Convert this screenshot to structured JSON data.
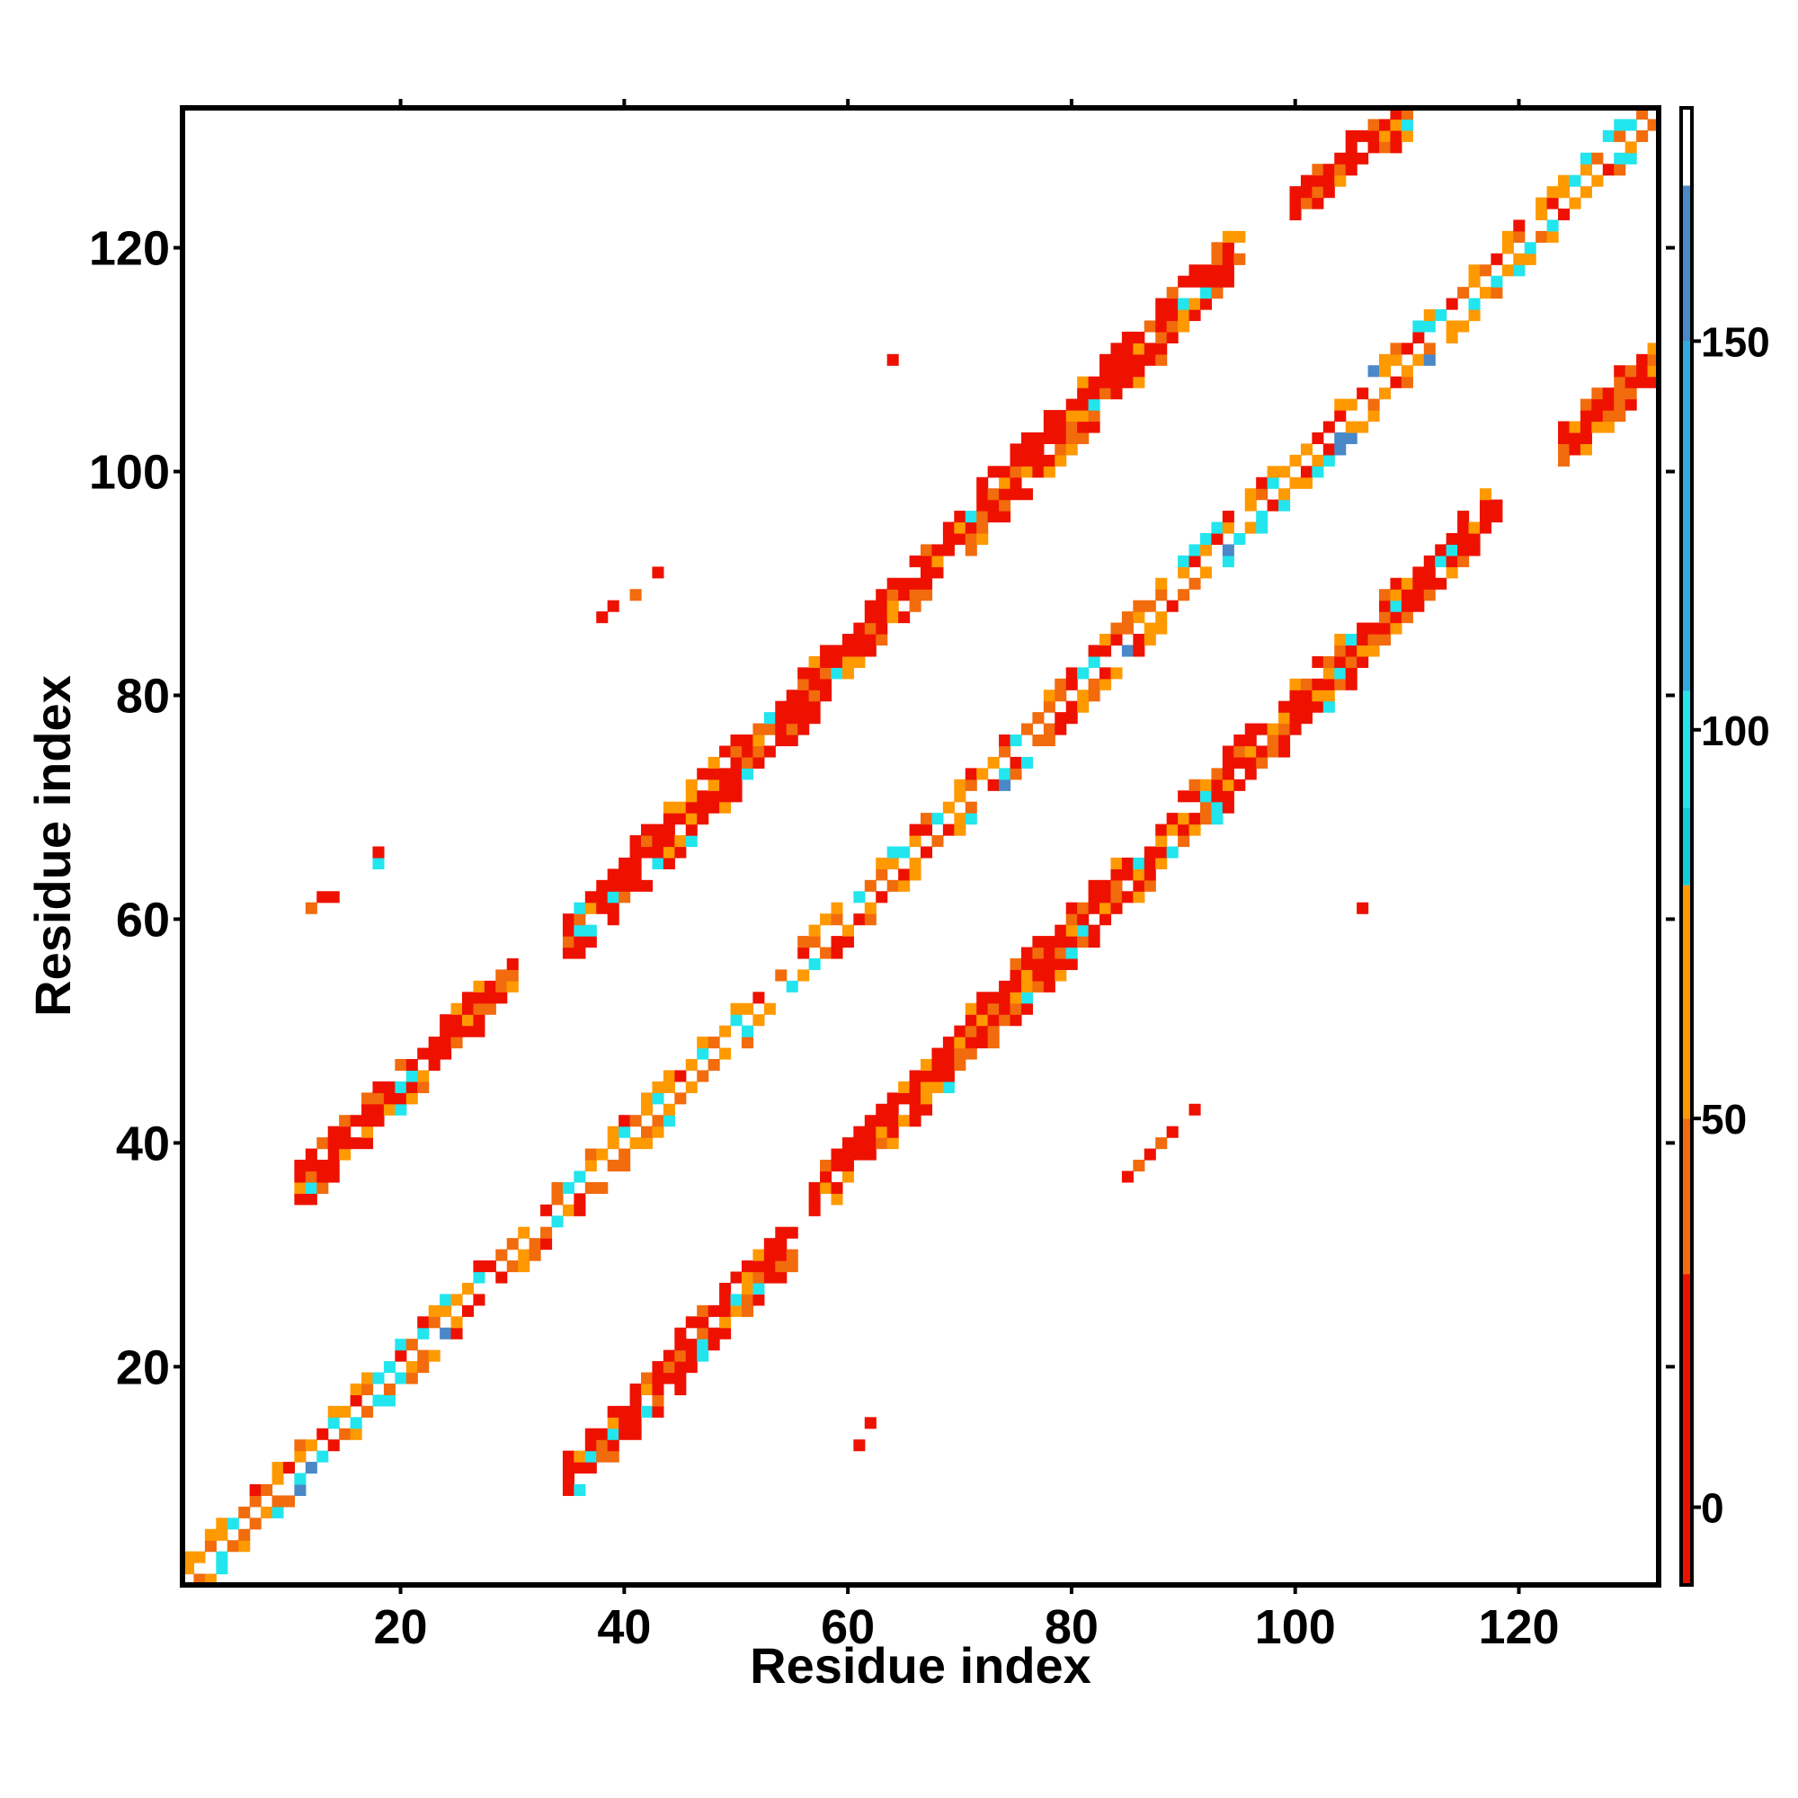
{
  "chart_data": {
    "type": "heatmap",
    "title": "",
    "xlabel": "Residue index",
    "ylabel": "Residue index",
    "xlim": [
      1,
      132
    ],
    "ylim": [
      1,
      132
    ],
    "x_ticks": [
      20,
      40,
      60,
      80,
      100,
      120
    ],
    "y_ticks": [
      20,
      40,
      60,
      80,
      100,
      120
    ],
    "x_tick_labels": [
      "20",
      "40",
      "60",
      "80",
      "100",
      "120"
    ],
    "y_tick_labels": [
      "20",
      "40",
      "60",
      "80",
      "100",
      "120"
    ],
    "colorbar": {
      "range": [
        -10,
        180
      ],
      "ticks": [
        0,
        50,
        100,
        150
      ],
      "tick_labels": [
        "0",
        "50",
        "100",
        "150"
      ],
      "bands": [
        {
          "from": -10,
          "to": 30,
          "color": "#ee1100"
        },
        {
          "from": 30,
          "to": 50,
          "color": "#f26b0c"
        },
        {
          "from": 50,
          "to": 80,
          "color": "#ff9900"
        },
        {
          "from": 80,
          "to": 90,
          "color": "#11ccdd"
        },
        {
          "from": 90,
          "to": 105,
          "color": "#22e5ee"
        },
        {
          "from": 105,
          "to": 150,
          "color": "#33aadd"
        },
        {
          "from": 150,
          "to": 170,
          "color": "#4a88c8"
        },
        {
          "from": 170,
          "to": 180,
          "color": "#ffffff"
        }
      ]
    },
    "colors": {
      "red": "#ee1100",
      "orange_red": "#f26b0c",
      "orange": "#ff9900",
      "cyan": "#22e5ee",
      "blue": "#4a88c8"
    },
    "regions": [
      {
        "name": "diagonal",
        "x_start": 1,
        "x_end": 132,
        "y_start": 1,
        "y_end": 132,
        "half_width": 2.4,
        "dominant": "orange",
        "highlight": "cyan"
      },
      {
        "name": "band-a",
        "x_start": 11,
        "x_end": 30,
        "y_start": 36,
        "y_end": 55,
        "half_width": 2.6,
        "dominant": "red"
      },
      {
        "name": "band-b",
        "x_start": 35,
        "x_end": 95,
        "y_start": 58,
        "y_end": 120,
        "half_width": 2.8,
        "dominant": "red"
      },
      {
        "name": "band-c",
        "x_start": 35,
        "x_end": 55,
        "y_start": 10,
        "y_end": 31,
        "half_width": 2.6,
        "dominant": "red"
      },
      {
        "name": "band-d",
        "x_start": 57,
        "x_end": 118,
        "y_start": 35,
        "y_end": 97,
        "half_width": 2.8,
        "dominant": "red"
      },
      {
        "name": "band-e",
        "x_start": 100,
        "x_end": 110,
        "y_start": 124,
        "y_end": 132,
        "half_width": 2.2,
        "dominant": "red"
      },
      {
        "name": "band-f",
        "x_start": 124,
        "x_end": 132,
        "y_start": 102,
        "y_end": 110,
        "half_width": 2.2,
        "dominant": "red"
      },
      {
        "name": "sparse-1",
        "x_start": 12,
        "x_end": 20,
        "y_start": 61,
        "y_end": 67,
        "half_width": 0.5,
        "dominant": "red"
      },
      {
        "name": "sparse-2",
        "x_start": 37,
        "x_end": 43,
        "y_start": 86,
        "y_end": 91,
        "half_width": 0.5,
        "dominant": "red"
      },
      {
        "name": "sparse-3",
        "x_start": 60,
        "x_end": 65,
        "y_start": 12,
        "y_end": 19,
        "half_width": 0.5,
        "dominant": "red"
      },
      {
        "name": "sparse-4",
        "x_start": 60,
        "x_end": 65,
        "y_start": 104,
        "y_end": 111,
        "half_width": 0.5,
        "dominant": "red"
      },
      {
        "name": "sparse-5",
        "x_start": 84,
        "x_end": 91,
        "y_start": 36,
        "y_end": 43,
        "half_width": 0.5,
        "dominant": "red"
      },
      {
        "name": "sparse-6",
        "x_start": 105,
        "x_end": 111,
        "y_start": 60,
        "y_end": 65,
        "half_width": 0.5,
        "dominant": "red"
      }
    ]
  }
}
